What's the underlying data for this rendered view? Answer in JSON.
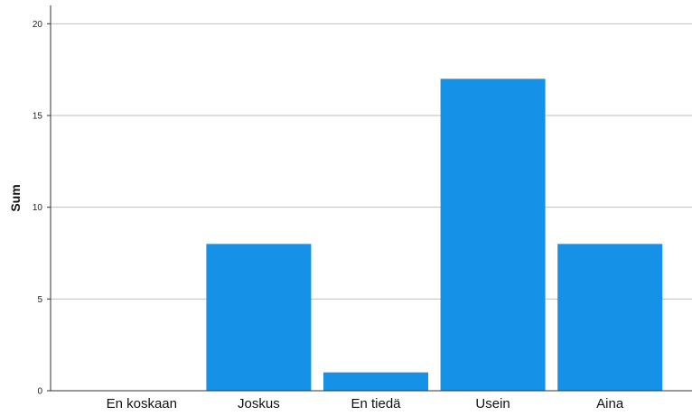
{
  "chart_data": {
    "type": "bar",
    "title": "",
    "xlabel": "",
    "ylabel": "Sum",
    "categories": [
      "En koskaan",
      "Joskus",
      "En tiedä",
      "Usein",
      "Aina"
    ],
    "values": [
      0,
      8,
      1,
      17,
      8
    ],
    "ylim": [
      0,
      21
    ],
    "yticks": [
      0,
      5,
      10,
      15,
      20
    ],
    "grid": true,
    "colors": {
      "bar": "#1591E8",
      "grid": "#BEBEBE",
      "axis": "#333333"
    }
  }
}
